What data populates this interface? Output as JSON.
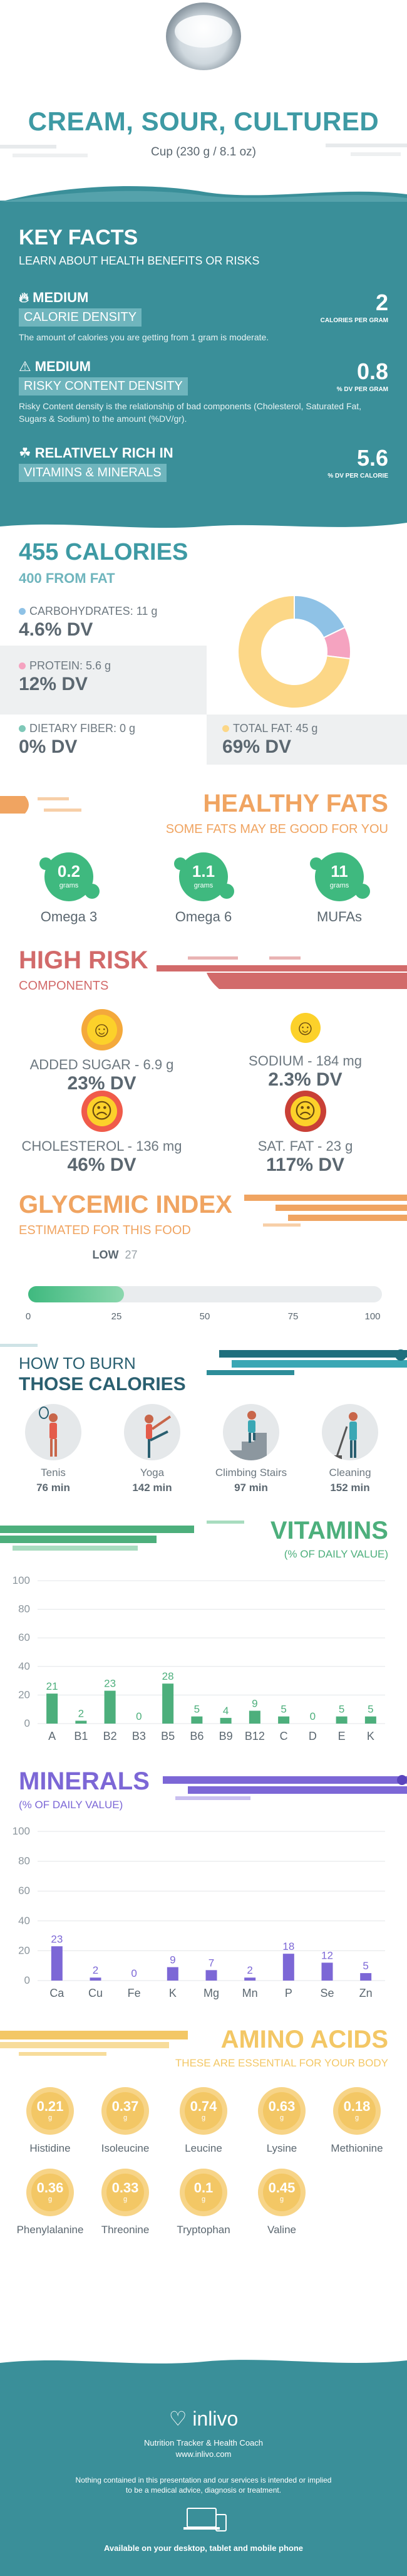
{
  "header": {
    "title": "CREAM, SOUR, CULTURED",
    "serving": "Cup (230 g / 8.1 oz)"
  },
  "key_facts": {
    "title": "KEY FACTS",
    "subtitle": "LEARN ABOUT HEALTH BENEFITS OR RISKS",
    "items": [
      {
        "badge": "MEDIUM",
        "label": "CALORIE DENSITY",
        "value": "2",
        "unit": "CALORIES PER GRAM",
        "desc": "The amount of calories you are getting from 1 gram is moderate.",
        "icon": "flame-icon"
      },
      {
        "badge": "MEDIUM",
        "label": "RISKY CONTENT DENSITY",
        "value": "0.8",
        "unit": "% DV PER GRAM",
        "desc": "Risky Content density is the relationship of bad components (Cholesterol, Saturated Fat, Sugars & Sodium) to the amount (%DV/gr).",
        "icon": "warning-icon"
      },
      {
        "badge": "RELATIVELY RICH IN",
        "label": "VITAMINS & MINERALS",
        "value": "5.6",
        "unit": "% DV PER CALORIE",
        "desc": "",
        "icon": "leaf-icon"
      }
    ]
  },
  "calories": {
    "title": "455 CALORIES",
    "subtitle": "400 FROM FAT",
    "nutrients": [
      {
        "label": "CARBOHYDRATES: 11 g",
        "dv": "4.6% DV",
        "color": "#8fc2e6"
      },
      {
        "label": "PROTEIN: 5.6 g",
        "dv": "12% DV",
        "color": "#f5a3c0"
      },
      {
        "label": "DIETARY FIBER: 0 g",
        "dv": "0% DV",
        "color": "#7fc8b8"
      },
      {
        "label": "TOTAL FAT: 45 g",
        "dv": "69% DV",
        "color": "#fcd787"
      }
    ],
    "chart_data": {
      "type": "pie",
      "categories": [
        "Carbohydrates",
        "Protein",
        "Total Fat"
      ],
      "values": [
        11,
        5.6,
        45
      ],
      "colors": [
        "#8fc2e6",
        "#f5a3c0",
        "#fcd787"
      ]
    }
  },
  "healthy_fats": {
    "title": "HEALTHY FATS",
    "subtitle": "SOME FATS MAY BE GOOD FOR YOU",
    "items": [
      {
        "value": "0.2",
        "unit": "grams",
        "name": "Omega 3"
      },
      {
        "value": "1.1",
        "unit": "grams",
        "name": "Omega 6"
      },
      {
        "value": "11",
        "unit": "grams",
        "name": "MUFAs"
      }
    ]
  },
  "high_risk": {
    "title": "HIGH RISK",
    "subtitle": "COMPONENTS",
    "items": [
      {
        "label": "ADDED SUGAR - 6.9 g",
        "dv": "23% DV",
        "face": "happy"
      },
      {
        "label": "SODIUM - 184 mg",
        "dv": "2.3% DV",
        "face": "happy"
      },
      {
        "label": "CHOLESTEROL - 136 mg",
        "dv": "46% DV",
        "face": "sad"
      },
      {
        "label": "SAT. FAT - 23 g",
        "dv": "117% DV",
        "face": "sad"
      }
    ]
  },
  "glycemic": {
    "title": "GLYCEMIC INDEX",
    "subtitle": "ESTIMATED FOR THIS FOOD",
    "level": "LOW",
    "value": "27",
    "index_value": 27,
    "scale_max": 100,
    "ticks": [
      "0",
      "25",
      "50",
      "75",
      "100"
    ]
  },
  "burn": {
    "title_line1": "HOW TO BURN",
    "title_line2": "THOSE CALORIES",
    "activities": [
      {
        "name": "Tenis",
        "time": "76 min"
      },
      {
        "name": "Yoga",
        "time": "142 min"
      },
      {
        "name": "Climbing Stairs",
        "time": "97 min"
      },
      {
        "name": "Cleaning",
        "time": "152 min"
      }
    ]
  },
  "vitamins": {
    "title": "VITAMINS",
    "subtitle": "(% OF DAILY VALUE)",
    "chart_data": {
      "type": "bar",
      "categories": [
        "A",
        "B1",
        "B2",
        "B3",
        "B5",
        "B6",
        "B9",
        "B12",
        "C",
        "D",
        "E",
        "K"
      ],
      "values": [
        21,
        2,
        23,
        0,
        28,
        5,
        4,
        9,
        5,
        0,
        5,
        5
      ],
      "labels": [
        "21",
        "2",
        "23",
        "0",
        "28",
        "5",
        "4",
        "9",
        "5",
        "0",
        "5",
        "5"
      ],
      "yticks": [
        "0",
        "20",
        "40",
        "60",
        "80",
        "100"
      ],
      "ylim": [
        0,
        100
      ],
      "color": "#4daf7c"
    }
  },
  "minerals": {
    "title": "MINERALS",
    "subtitle": "(% OF DAILY VALUE)",
    "chart_data": {
      "type": "bar",
      "categories": [
        "Ca",
        "Cu",
        "Fe",
        "K",
        "Mg",
        "Mn",
        "P",
        "Se",
        "Zn"
      ],
      "values": [
        23,
        2,
        0,
        9,
        7,
        2,
        18,
        12,
        5
      ],
      "labels": [
        "23",
        "2",
        "0",
        "9",
        "7",
        "2",
        "18",
        "12",
        "5"
      ],
      "yticks": [
        "0",
        "20",
        "40",
        "60",
        "80",
        "100"
      ],
      "ylim": [
        0,
        100
      ],
      "color": "#7c67d6"
    }
  },
  "amino": {
    "title": "AMINO ACIDS",
    "subtitle": "THESE ARE ESSENTIAL FOR YOUR BODY",
    "items": [
      {
        "value": "0.21",
        "unit": "g",
        "name": "Histidine"
      },
      {
        "value": "0.37",
        "unit": "g",
        "name": "Isoleucine"
      },
      {
        "value": "0.74",
        "unit": "g",
        "name": "Leucine"
      },
      {
        "value": "0.63",
        "unit": "g",
        "name": "Lysine"
      },
      {
        "value": "0.18",
        "unit": "g",
        "name": "Methionine"
      },
      {
        "value": "0.36",
        "unit": "g",
        "name": "Phenylalanine"
      },
      {
        "value": "0.33",
        "unit": "g",
        "name": "Threonine"
      },
      {
        "value": "0.1",
        "unit": "g",
        "name": "Tryptophan"
      },
      {
        "value": "0.45",
        "unit": "g",
        "name": "Valine"
      }
    ]
  },
  "footer": {
    "brand": "inlivo",
    "tagline": "Nutrition Tracker & Health Coach",
    "url": "www.inlivo.com",
    "disclaimer1": "Nothing contained in this presentation and our services is intended or implied",
    "disclaimer2": "to be a medical advice, diagnosis or treatment.",
    "available": "Available on your desktop, tablet and mobile phone"
  },
  "colors": {
    "teal": "#3a8f99",
    "orange": "#f0a461",
    "red": "#d26a6a",
    "green": "#4daf7c",
    "purple": "#7c67d6",
    "gold": "#f3c765"
  }
}
